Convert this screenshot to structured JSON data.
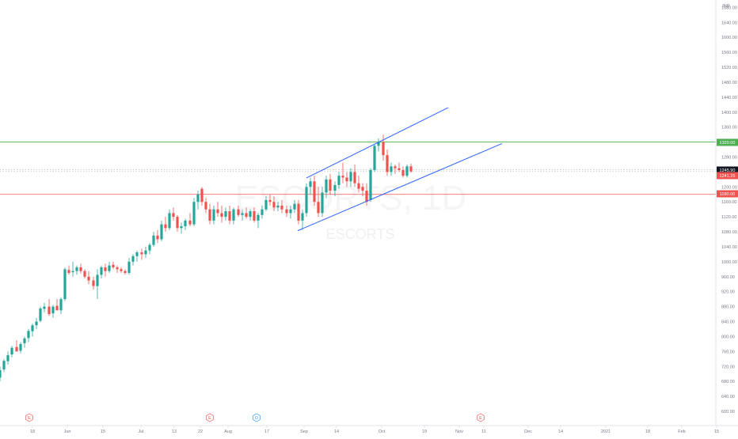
{
  "currency": "INR",
  "watermark": {
    "symbol": "ESCORTS, 1D",
    "name": "ESCORTS"
  },
  "price_tags": [
    {
      "label": "1320.00",
      "value": 1320,
      "color": "#4caf50"
    },
    {
      "label": "1245.90",
      "value": 1245.9,
      "color": "#131722"
    },
    {
      "label": "1241.25",
      "value": 1241.25,
      "color": "#ef5350"
    },
    {
      "label": "1180.00",
      "value": 1180,
      "color": "#ef5350"
    }
  ],
  "colors": {
    "up": "#26a69a",
    "down": "#ef5350",
    "channel": "#2962ff",
    "support": "#ef5350",
    "resistance": "#4caf50",
    "axis_text": "#787b86",
    "grid": "#e0e3eb"
  },
  "events": [
    {
      "label": "E",
      "x": 37,
      "color": "#ef5350"
    },
    {
      "label": "E",
      "x": 265,
      "color": "#ef5350"
    },
    {
      "label": "D",
      "x": 324,
      "color": "#2196f3"
    },
    {
      "label": "E",
      "x": 607,
      "color": "#ef5350"
    }
  ],
  "chart_data": {
    "type": "candlestick",
    "y_tick_labels": [
      "1680.00",
      "1640.00",
      "1600.00",
      "1560.00",
      "1520.00",
      "1480.00",
      "1440.00",
      "1400.00",
      "1360.00",
      "1320.00",
      "1280.00",
      "1240.00",
      "1200.00",
      "1160.00",
      "1120.00",
      "1080.00",
      "1040.00",
      "1000.00",
      "960.00",
      "920.00",
      "880.00",
      "840.00",
      "800.00",
      "760.00",
      "720.00",
      "680.00",
      "640.00",
      "600.00",
      "560.00"
    ],
    "ylim": [
      553,
      1700
    ],
    "x_tick_labels": [
      "18",
      "Jun",
      "15",
      "Jul",
      "13",
      "22",
      "Aug",
      "17",
      "Sep",
      "14",
      "Oct",
      "19",
      "Nov",
      "11",
      "Dec",
      "14",
      "2021",
      "18",
      "Feb",
      "15"
    ],
    "horizontal_lines": [
      1320,
      1180
    ],
    "channel": {
      "upper": [
        [
          387,
          1224
        ],
        [
          566,
          1412
        ]
      ],
      "lower": [
        [
          376,
          1083
        ],
        [
          634,
          1316
        ]
      ]
    },
    "candles": [
      [
        0,
        690,
        720,
        680,
        710
      ],
      [
        5,
        712,
        740,
        705,
        735
      ],
      [
        10,
        734,
        760,
        725,
        750
      ],
      [
        15,
        752,
        775,
        745,
        770
      ],
      [
        21,
        772,
        790,
        760,
        760
      ],
      [
        26,
        762,
        785,
        755,
        780
      ],
      [
        31,
        782,
        800,
        770,
        795
      ],
      [
        36,
        796,
        820,
        785,
        815
      ],
      [
        41,
        814,
        835,
        800,
        830
      ],
      [
        46,
        830,
        850,
        820,
        840
      ],
      [
        51,
        842,
        880,
        838,
        875
      ],
      [
        56,
        874,
        890,
        865,
        880
      ],
      [
        62,
        880,
        900,
        855,
        860
      ],
      [
        67,
        862,
        885,
        850,
        880
      ],
      [
        72,
        882,
        900,
        870,
        870
      ],
      [
        77,
        870,
        905,
        860,
        900
      ],
      [
        82,
        900,
        985,
        895,
        980
      ],
      [
        87,
        978,
        990,
        965,
        970
      ],
      [
        92,
        972,
        1000,
        960,
        975
      ],
      [
        97,
        975,
        990,
        965,
        985
      ],
      [
        102,
        985,
        995,
        968,
        975
      ],
      [
        107,
        975,
        980,
        955,
        960
      ],
      [
        112,
        960,
        975,
        940,
        950
      ],
      [
        118,
        950,
        960,
        925,
        935
      ],
      [
        123,
        935,
        980,
        900,
        965
      ],
      [
        128,
        965,
        990,
        955,
        985
      ],
      [
        133,
        985,
        995,
        960,
        975
      ],
      [
        138,
        975,
        1000,
        970,
        990
      ],
      [
        143,
        992,
        1000,
        980,
        985
      ],
      [
        148,
        985,
        990,
        970,
        980
      ],
      [
        153,
        980,
        985,
        970,
        975
      ],
      [
        158,
        975,
        980,
        965,
        970
      ],
      [
        163,
        970,
        1010,
        965,
        1000
      ],
      [
        168,
        1000,
        1020,
        990,
        1015
      ],
      [
        173,
        1015,
        1030,
        1000,
        1025
      ],
      [
        179,
        1025,
        1035,
        1005,
        1020
      ],
      [
        184,
        1020,
        1040,
        1010,
        1030
      ],
      [
        189,
        1030,
        1050,
        1020,
        1045
      ],
      [
        194,
        1045,
        1080,
        1040,
        1070
      ],
      [
        199,
        1070,
        1085,
        1050,
        1060
      ],
      [
        204,
        1060,
        1110,
        1055,
        1100
      ],
      [
        209,
        1100,
        1120,
        1080,
        1090
      ],
      [
        214,
        1090,
        1140,
        1085,
        1130
      ],
      [
        219,
        1130,
        1145,
        1110,
        1120
      ],
      [
        224,
        1120,
        1125,
        1080,
        1090
      ],
      [
        229,
        1090,
        1105,
        1075,
        1095
      ],
      [
        234,
        1095,
        1115,
        1085,
        1110
      ],
      [
        240,
        1110,
        1130,
        1095,
        1100
      ],
      [
        245,
        1100,
        1170,
        1095,
        1160
      ],
      [
        250,
        1160,
        1190,
        1140,
        1180
      ],
      [
        255,
        1195,
        1200,
        1150,
        1160
      ],
      [
        260,
        1160,
        1170,
        1130,
        1140
      ],
      [
        265,
        1140,
        1155,
        1100,
        1110
      ],
      [
        270,
        1110,
        1150,
        1100,
        1140
      ],
      [
        275,
        1140,
        1160,
        1120,
        1130
      ],
      [
        280,
        1130,
        1150,
        1105,
        1120
      ],
      [
        285,
        1120,
        1145,
        1110,
        1135
      ],
      [
        290,
        1135,
        1150,
        1100,
        1110
      ],
      [
        295,
        1110,
        1145,
        1100,
        1140
      ],
      [
        301,
        1140,
        1150,
        1120,
        1125
      ],
      [
        306,
        1125,
        1140,
        1110,
        1130
      ],
      [
        311,
        1130,
        1145,
        1115,
        1120
      ],
      [
        316,
        1120,
        1140,
        1110,
        1135
      ],
      [
        321,
        1135,
        1145,
        1105,
        1110
      ],
      [
        326,
        1110,
        1130,
        1090,
        1125
      ],
      [
        331,
        1125,
        1150,
        1115,
        1140
      ],
      [
        336,
        1140,
        1175,
        1135,
        1165
      ],
      [
        341,
        1165,
        1180,
        1150,
        1160
      ],
      [
        346,
        1160,
        1175,
        1135,
        1145
      ],
      [
        351,
        1145,
        1160,
        1135,
        1150
      ],
      [
        356,
        1150,
        1165,
        1130,
        1140
      ],
      [
        362,
        1140,
        1150,
        1120,
        1130
      ],
      [
        367,
        1130,
        1150,
        1115,
        1140
      ],
      [
        372,
        1140,
        1165,
        1130,
        1155
      ],
      [
        377,
        1155,
        1165,
        1100,
        1110
      ],
      [
        382,
        1110,
        1140,
        1085,
        1130
      ],
      [
        387,
        1130,
        1210,
        1120,
        1200
      ],
      [
        392,
        1200,
        1225,
        1180,
        1215
      ],
      [
        397,
        1215,
        1230,
        1150,
        1160
      ],
      [
        402,
        1160,
        1200,
        1120,
        1130
      ],
      [
        407,
        1130,
        1200,
        1120,
        1185
      ],
      [
        412,
        1185,
        1230,
        1170,
        1220
      ],
      [
        417,
        1220,
        1235,
        1180,
        1190
      ],
      [
        423,
        1190,
        1215,
        1175,
        1205
      ],
      [
        428,
        1205,
        1240,
        1195,
        1230
      ],
      [
        433,
        1230,
        1265,
        1210,
        1225
      ],
      [
        438,
        1225,
        1240,
        1200,
        1215
      ],
      [
        443,
        1215,
        1250,
        1200,
        1240
      ],
      [
        448,
        1240,
        1260,
        1200,
        1210
      ],
      [
        453,
        1210,
        1230,
        1185,
        1195
      ],
      [
        458,
        1200,
        1210,
        1175,
        1190
      ],
      [
        463,
        1190,
        1210,
        1150,
        1160
      ],
      [
        468,
        1165,
        1250,
        1160,
        1245
      ],
      [
        473,
        1245,
        1315,
        1240,
        1310
      ],
      [
        478,
        1310,
        1330,
        1295,
        1320
      ],
      [
        484,
        1320,
        1340,
        1270,
        1285
      ],
      [
        489,
        1285,
        1300,
        1230,
        1240
      ],
      [
        494,
        1240,
        1265,
        1230,
        1255
      ],
      [
        499,
        1255,
        1260,
        1235,
        1250
      ],
      [
        504,
        1250,
        1265,
        1240,
        1245
      ],
      [
        509,
        1245,
        1255,
        1225,
        1230
      ],
      [
        514,
        1230,
        1260,
        1225,
        1255
      ],
      [
        519,
        1255,
        1262,
        1238,
        1241.25
      ]
    ]
  }
}
